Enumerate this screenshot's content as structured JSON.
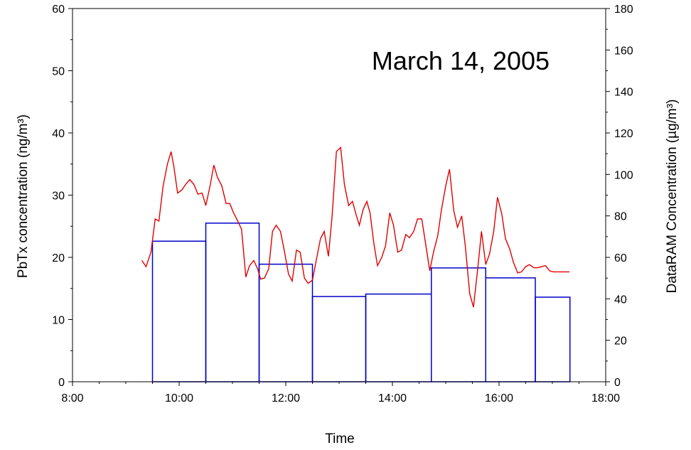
{
  "chart_data": {
    "type": "bar",
    "title": "March 14, 2005",
    "xlabel": "Time",
    "ylabel_left": "PbTx concentration (ng/m³)",
    "ylabel_right": "DataRAM Concentration (µg/m³)",
    "xlim": [
      8,
      18
    ],
    "x_tick_labels": [
      "8:00",
      "10:00",
      "12:00",
      "14:00",
      "16:00",
      "18:00"
    ],
    "ylim_left": [
      0,
      60
    ],
    "y_left_ticks": [
      "0",
      "10",
      "20",
      "30",
      "40",
      "50",
      "60"
    ],
    "ylim_right": [
      0,
      180
    ],
    "y_right_ticks": [
      "0",
      "20",
      "40",
      "60",
      "80",
      "100",
      "120",
      "140",
      "160",
      "180"
    ],
    "grid": false,
    "colors": {
      "bars": "#0000cc",
      "line": "#e00000"
    },
    "series": [
      {
        "kind": "bar",
        "axis": "left",
        "bins": [
          {
            "start": 9.5,
            "end": 10.5,
            "value": 22.6
          },
          {
            "start": 10.5,
            "end": 11.5,
            "value": 25.5
          },
          {
            "start": 11.5,
            "end": 12.5,
            "value": 18.9
          },
          {
            "start": 12.5,
            "end": 13.5,
            "value": 13.7
          },
          {
            "start": 13.5,
            "end": 14.73,
            "value": 14.1
          },
          {
            "start": 14.73,
            "end": 15.75,
            "value": 18.3
          },
          {
            "start": 15.75,
            "end": 16.68,
            "value": 16.7
          },
          {
            "start": 16.68,
            "end": 17.33,
            "value": 13.6
          }
        ]
      },
      {
        "kind": "line",
        "axis": "right",
        "x": [
          9.3,
          9.38,
          9.47,
          9.55,
          9.62,
          9.7,
          9.78,
          9.85,
          9.9,
          9.97,
          10.05,
          10.13,
          10.2,
          10.28,
          10.35,
          10.43,
          10.5,
          10.58,
          10.65,
          10.72,
          10.8,
          10.88,
          10.95,
          11.02,
          11.1,
          11.17,
          11.25,
          11.32,
          11.4,
          11.47,
          11.53,
          11.6,
          11.68,
          11.75,
          11.82,
          11.9,
          11.97,
          12.05,
          12.12,
          12.2,
          12.27,
          12.35,
          12.42,
          12.5,
          12.57,
          12.65,
          12.72,
          12.8,
          12.87,
          12.95,
          13.03,
          13.1,
          13.18,
          13.25,
          13.32,
          13.38,
          13.45,
          13.52,
          13.58,
          13.65,
          13.72,
          13.8,
          13.87,
          13.95,
          14.02,
          14.1,
          14.17,
          14.25,
          14.32,
          14.4,
          14.47,
          14.55,
          14.62,
          14.7,
          14.77,
          14.85,
          14.92,
          15.0,
          15.07,
          15.15,
          15.22,
          15.3,
          15.37,
          15.45,
          15.52,
          15.6,
          15.67,
          15.75,
          15.82,
          15.9,
          15.97,
          16.05,
          16.12,
          16.2,
          16.27,
          16.35,
          16.42,
          16.5,
          16.57,
          16.65,
          16.72,
          16.8,
          16.87,
          16.95,
          17.02,
          17.1,
          17.17,
          17.25,
          17.32
        ],
        "y": [
          58.5,
          55.5,
          62.5,
          78.5,
          77.5,
          94.5,
          105.0,
          111.0,
          104.0,
          91.0,
          92.5,
          95.5,
          97.5,
          95.0,
          90.5,
          91.0,
          85.0,
          94.5,
          104.5,
          98.5,
          94.5,
          86.0,
          86.0,
          81.5,
          77.5,
          73.5,
          50.5,
          56.0,
          58.5,
          54.5,
          49.5,
          50.0,
          54.5,
          72.5,
          75.5,
          72.5,
          63.5,
          52.0,
          48.5,
          63.5,
          62.5,
          50.0,
          47.5,
          49.0,
          58.5,
          69.0,
          72.5,
          60.5,
          80.0,
          111.0,
          113.0,
          95.0,
          85.0,
          87.0,
          80.5,
          75.5,
          83.0,
          87.0,
          81.5,
          67.0,
          56.0,
          60.0,
          65.5,
          81.5,
          75.5,
          62.5,
          63.5,
          71.0,
          69.5,
          72.5,
          78.5,
          78.5,
          67.0,
          53.5,
          62.5,
          70.5,
          83.0,
          94.5,
          102.5,
          82.5,
          74.5,
          80.0,
          65.0,
          42.5,
          36.0,
          54.5,
          72.5,
          56.5,
          61.5,
          72.5,
          89.0,
          81.0,
          69.0,
          64.0,
          57.5,
          52.5,
          53.0,
          55.5,
          56.5,
          55.0,
          55.0,
          55.5,
          56.0,
          53.5,
          53.0,
          53.0,
          53.0,
          53.0,
          53.0
        ]
      }
    ]
  }
}
